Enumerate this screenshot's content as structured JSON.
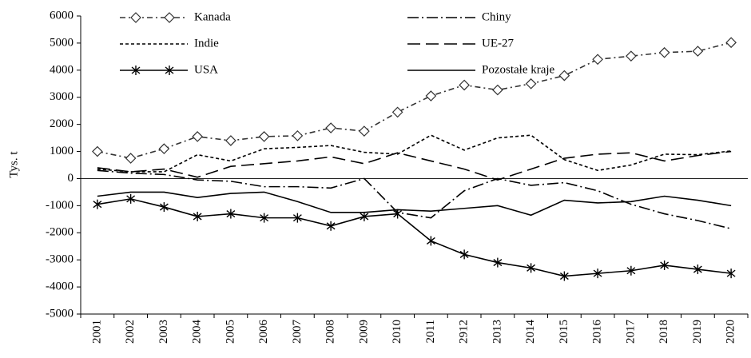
{
  "chart_data": {
    "type": "line",
    "ylabel": "Tys. t",
    "categories": [
      "2001",
      "2002",
      "2003",
      "2004",
      "2005",
      "2006",
      "2007",
      "2008",
      "2009",
      "2010",
      "2011",
      "2912",
      "2013",
      "2014",
      "2015",
      "2016",
      "2017",
      "2018",
      "2019",
      "2020"
    ],
    "ylim": [
      -5000,
      6000
    ],
    "yticks": [
      -5000,
      -4000,
      -3000,
      -2000,
      -1000,
      0,
      1000,
      2000,
      3000,
      4000,
      5000,
      6000
    ],
    "series": [
      {
        "name": "Kanada",
        "color": "#333333",
        "dash": "7 4 2 4",
        "marker": "diamond",
        "values": [
          1000,
          750,
          1100,
          1550,
          1400,
          1550,
          1580,
          1870,
          1750,
          2450,
          3050,
          3450,
          3270,
          3500,
          3800,
          4400,
          4520,
          4650,
          4700,
          5020
        ]
      },
      {
        "name": "Chiny",
        "color": "#000000",
        "dash": "14 4 2 4",
        "marker": "none",
        "values": [
          300,
          200,
          150,
          -50,
          -100,
          -300,
          -300,
          -350,
          0,
          -1250,
          -1450,
          -450,
          0,
          -250,
          -150,
          -450,
          -950,
          -1300,
          -1550,
          -1850
        ]
      },
      {
        "name": "Indie",
        "color": "#000000",
        "dash": "4 3",
        "marker": "none",
        "values": [
          350,
          250,
          250,
          880,
          650,
          1100,
          1150,
          1220,
          970,
          900,
          1600,
          1050,
          1500,
          1600,
          700,
          300,
          500,
          900,
          880,
          1020
        ]
      },
      {
        "name": "UE-27",
        "color": "#000000",
        "dash": "16 7",
        "marker": "none",
        "values": [
          400,
          250,
          350,
          50,
          450,
          550,
          650,
          800,
          550,
          950,
          650,
          350,
          -50,
          350,
          750,
          900,
          950,
          650,
          850,
          1000
        ]
      },
      {
        "name": "USA",
        "color": "#000000",
        "dash": "none",
        "marker": "asterisk",
        "values": [
          -950,
          -750,
          -1050,
          -1400,
          -1300,
          -1450,
          -1450,
          -1750,
          -1400,
          -1300,
          -2300,
          -2800,
          -3100,
          -3300,
          -3600,
          -3500,
          -3400,
          -3200,
          -3350,
          -3500
        ]
      },
      {
        "name": "Pozostałe kraje",
        "color": "#000000",
        "dash": "none",
        "marker": "none",
        "values": [
          -650,
          -500,
          -500,
          -700,
          -550,
          -500,
          -850,
          -1250,
          -1250,
          -1150,
          -1200,
          -1100,
          -1000,
          -1350,
          -800,
          -900,
          -850,
          -650,
          -800,
          -1000
        ]
      }
    ]
  }
}
